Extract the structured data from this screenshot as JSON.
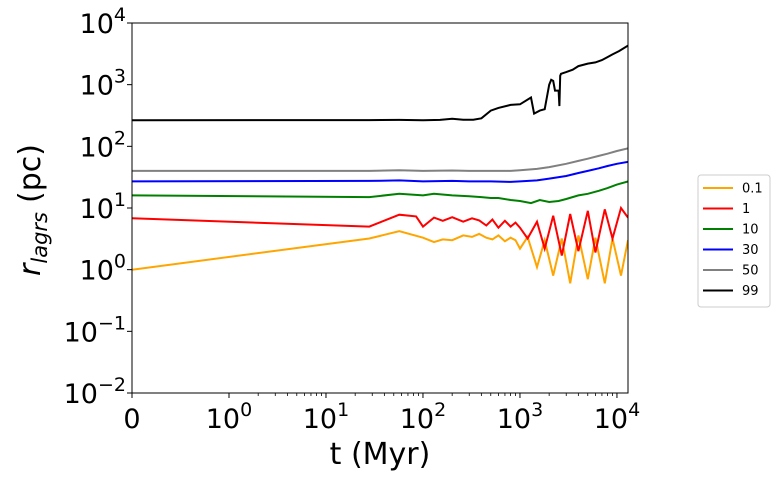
{
  "chart_data": {
    "type": "line",
    "title": "",
    "xlabel": "t (Myr)",
    "ylabel_main": "r",
    "ylabel_sub": "lagrs",
    "ylabel_unit": "(pc)",
    "xscale": "symlog",
    "yscale": "log",
    "xlim": [
      0,
      13000
    ],
    "ylim": [
      0.01,
      10000
    ],
    "x_ticks": [
      {
        "value": 0,
        "base": "0",
        "exp": ""
      },
      {
        "value": 1,
        "base": "10",
        "exp": "0"
      },
      {
        "value": 10,
        "base": "10",
        "exp": "1"
      },
      {
        "value": 100,
        "base": "10",
        "exp": "2"
      },
      {
        "value": 1000,
        "base": "10",
        "exp": "3"
      },
      {
        "value": 10000,
        "base": "10",
        "exp": "4"
      }
    ],
    "y_ticks": [
      {
        "value": 0.01,
        "base": "10",
        "exp": "−2"
      },
      {
        "value": 0.1,
        "base": "10",
        "exp": "−1"
      },
      {
        "value": 1,
        "base": "10",
        "exp": "0"
      },
      {
        "value": 10,
        "base": "10",
        "exp": "1"
      },
      {
        "value": 100,
        "base": "10",
        "exp": "2"
      },
      {
        "value": 1000,
        "base": "10",
        "exp": "3"
      },
      {
        "value": 10000,
        "base": "10",
        "exp": "4"
      }
    ],
    "legend_position": "right",
    "series": [
      {
        "name": "0.1",
        "color": "#ffa500",
        "x": [
          0,
          28,
          57,
          100,
          130,
          160,
          200,
          260,
          320,
          380,
          450,
          520,
          600,
          700,
          800,
          900,
          1000,
          1200,
          1500,
          1800,
          2200,
          2700,
          3300,
          4000,
          5000,
          6000,
          7500,
          9000,
          11000,
          13000
        ],
        "y": [
          1.0,
          3.2,
          4.2,
          3.3,
          2.8,
          3.1,
          3.0,
          3.6,
          3.4,
          3.8,
          3.3,
          3.1,
          3.6,
          2.9,
          3.3,
          3.0,
          2.2,
          3.4,
          1.1,
          3.0,
          0.8,
          3.2,
          0.6,
          3.6,
          0.7,
          3.3,
          0.6,
          3.2,
          0.8,
          3.0
        ]
      },
      {
        "name": "1",
        "color": "#ff0000",
        "x": [
          0,
          28,
          57,
          85,
          100,
          130,
          160,
          200,
          260,
          320,
          380,
          450,
          520,
          600,
          700,
          800,
          900,
          1000,
          1200,
          1500,
          1800,
          2200,
          2700,
          3300,
          4000,
          5000,
          6000,
          7500,
          9000,
          11000,
          13000
        ],
        "y": [
          6.8,
          5.0,
          7.8,
          7.3,
          5.0,
          7.0,
          6.2,
          7.1,
          6.0,
          6.8,
          6.3,
          5.2,
          6.5,
          4.8,
          6.2,
          5.0,
          5.8,
          4.8,
          3.2,
          6.0,
          2.2,
          7.5,
          1.7,
          8.0,
          2.0,
          9.0,
          1.9,
          9.5,
          3.2,
          10.0,
          7.0
        ]
      },
      {
        "name": "10",
        "color": "#008000",
        "x": [
          0,
          28,
          57,
          100,
          130,
          200,
          300,
          400,
          500,
          600,
          800,
          1000,
          1300,
          1600,
          2000,
          2500,
          3000,
          4000,
          5000,
          6500,
          8000,
          10000,
          13000
        ],
        "y": [
          16,
          15,
          17,
          16,
          17,
          16,
          15.5,
          15,
          14.5,
          14.5,
          13.5,
          13,
          12,
          13.5,
          12.5,
          13,
          14,
          16,
          17,
          19,
          21,
          24,
          27
        ]
      },
      {
        "name": "30",
        "color": "#0000ff",
        "x": [
          0,
          28,
          57,
          100,
          200,
          300,
          500,
          800,
          1000,
          1500,
          2000,
          3000,
          4000,
          5000,
          6500,
          8000,
          10000,
          13000
        ],
        "y": [
          27,
          27.5,
          28,
          27,
          27.5,
          27,
          27,
          26.5,
          27,
          28,
          30,
          33,
          37,
          40,
          44,
          48,
          52,
          56
        ]
      },
      {
        "name": "50",
        "color": "#808080",
        "x": [
          0,
          28,
          57,
          100,
          200,
          300,
          500,
          800,
          1000,
          1500,
          2000,
          3000,
          4000,
          5000,
          6500,
          8000,
          10000,
          13000
        ],
        "y": [
          40,
          40,
          41,
          40,
          40.5,
          40,
          40,
          40,
          41,
          43,
          46,
          52,
          58,
          63,
          70,
          76,
          84,
          93
        ]
      },
      {
        "name": "99",
        "color": "#000000",
        "x": [
          0,
          28,
          57,
          100,
          150,
          200,
          260,
          330,
          400,
          500,
          600,
          800,
          1000,
          1300,
          1400,
          1600,
          1800,
          2000,
          2100,
          2200,
          2300,
          2500,
          2550,
          2600,
          2650,
          3000,
          3500,
          4000,
          5000,
          6000,
          7000,
          8000,
          9000,
          10500,
          13000
        ],
        "y": [
          265,
          266,
          268,
          265,
          268,
          280,
          270,
          270,
          285,
          380,
          420,
          470,
          480,
          620,
          340,
          380,
          400,
          1000,
          1200,
          1150,
          800,
          800,
          450,
          1400,
          1500,
          1600,
          1750,
          2000,
          2200,
          2300,
          2500,
          2800,
          3100,
          3500,
          4300
        ]
      }
    ]
  }
}
